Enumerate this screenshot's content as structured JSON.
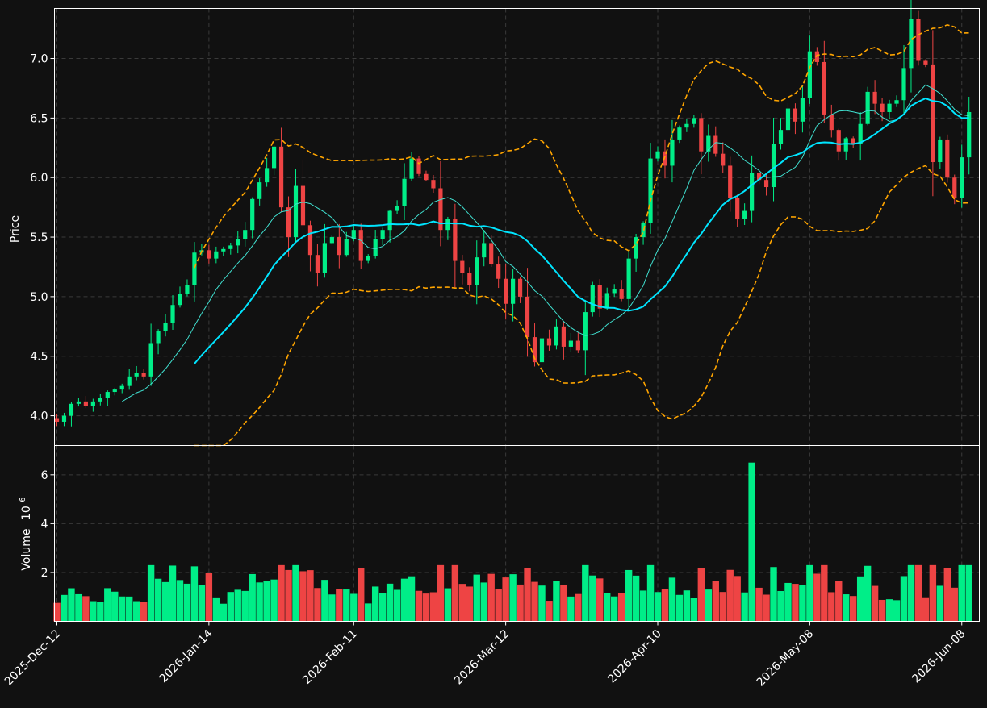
{
  "chart_data": {
    "type": "candlestick",
    "price_panel": {
      "ylabel": "Price",
      "ylim": [
        3.75,
        7.42
      ],
      "yticks": [
        "4.0",
        "4.5",
        "5.0",
        "5.5",
        "6.0",
        "6.5",
        "7.0"
      ],
      "grid": true
    },
    "volume_panel": {
      "ylabel": "Volume",
      "scale_label": "10",
      "scale_exponent": "6",
      "ylim": [
        0,
        7.2
      ],
      "yticks": [
        "2",
        "4",
        "6"
      ],
      "grid": true
    },
    "x_ticks": [
      {
        "label": "2025-Dec-12",
        "index": 0
      },
      {
        "label": "2026-Jan-14",
        "index": 21
      },
      {
        "label": "2026-Feb-11",
        "index": 41
      },
      {
        "label": "2026-Mar-12",
        "index": 62
      },
      {
        "label": "2026-Apr-10",
        "index": 83
      },
      {
        "label": "2026-May-08",
        "index": 104
      },
      {
        "label": "2026-Jun-08",
        "index": 125
      }
    ],
    "overlays": [
      {
        "kind": "moving-average",
        "window": 10,
        "color": "#40e0d0"
      },
      {
        "kind": "moving-average",
        "window": 20,
        "color": "#00e5ff"
      },
      {
        "kind": "bollinger-bands",
        "window": 20,
        "color": "#ffa500"
      }
    ],
    "colors": {
      "up": "#00ee88",
      "down": "#ee4444",
      "background": "#111111"
    },
    "close": [
      3.95,
      4.0,
      4.1,
      4.12,
      4.08,
      4.12,
      4.15,
      4.2,
      4.22,
      4.25,
      4.33,
      4.36,
      4.33,
      4.61,
      4.71,
      4.78,
      4.93,
      5.02,
      5.1,
      5.37,
      5.39,
      5.32,
      5.38,
      5.4,
      5.43,
      5.48,
      5.56,
      5.82,
      5.96,
      6.08,
      6.26,
      5.75,
      5.5,
      5.93,
      5.6,
      5.35,
      5.2,
      5.45,
      5.5,
      5.35,
      5.48,
      5.56,
      5.3,
      5.34,
      5.48,
      5.56,
      5.72,
      5.76,
      5.99,
      6.16,
      6.03,
      5.98,
      5.91,
      5.56,
      5.65,
      5.3,
      5.2,
      5.1,
      5.33,
      5.45,
      5.27,
      5.15,
      4.94,
      5.15,
      5.0,
      4.66,
      4.45,
      4.65,
      4.59,
      4.75,
      4.58,
      4.63,
      4.55,
      4.87,
      5.1,
      4.9,
      5.03,
      5.06,
      4.98,
      5.32,
      5.5,
      5.62,
      6.16,
      6.22,
      6.1,
      6.32,
      6.42,
      6.45,
      6.5,
      6.22,
      6.35,
      6.2,
      6.1,
      5.83,
      5.65,
      5.72,
      6.04,
      5.98,
      5.92,
      6.28,
      6.4,
      6.58,
      6.47,
      6.67,
      7.06,
      6.97,
      6.53,
      6.4,
      6.22,
      6.33,
      6.28,
      6.45,
      6.72,
      6.62,
      6.55,
      6.62,
      6.65,
      6.92,
      7.33,
      6.98,
      6.95,
      6.13,
      6.32,
      6.0,
      5.83,
      6.17,
      6.55
    ]
  }
}
